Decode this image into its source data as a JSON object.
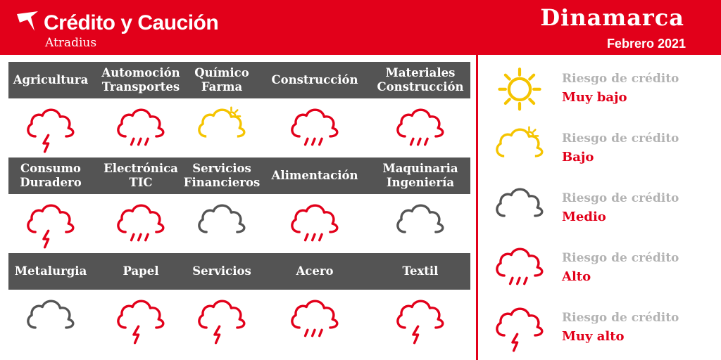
{
  "header": {
    "brand_title": "Crédito y Caución",
    "brand_subtitle": "Atradius",
    "country": "Dinamarca",
    "date": "Febrero 2021"
  },
  "sectors": [
    {
      "lines": [
        "Agricultura"
      ],
      "risk": "muy-alto"
    },
    {
      "lines": [
        "Automoción",
        "Transportes"
      ],
      "risk": "alto"
    },
    {
      "lines": [
        "Químico",
        "Farma"
      ],
      "risk": "bajo"
    },
    {
      "lines": [
        "Construcción"
      ],
      "risk": "alto"
    },
    {
      "lines": [
        "Materiales",
        "Construcción"
      ],
      "risk": "alto"
    },
    {
      "lines": [
        "Consumo",
        "Duradero"
      ],
      "risk": "muy-alto"
    },
    {
      "lines": [
        "Electrónica",
        "TIC"
      ],
      "risk": "alto"
    },
    {
      "lines": [
        "Servicios",
        "Financieros"
      ],
      "risk": "medio"
    },
    {
      "lines": [
        "Alimentación"
      ],
      "risk": "alto"
    },
    {
      "lines": [
        "Maquinaria",
        "Ingeniería"
      ],
      "risk": "medio"
    },
    {
      "lines": [
        "Metalurgia"
      ],
      "risk": "medio"
    },
    {
      "lines": [
        "Papel"
      ],
      "risk": "muy-alto"
    },
    {
      "lines": [
        "Servicios"
      ],
      "risk": "muy-alto"
    },
    {
      "lines": [
        "Acero"
      ],
      "risk": "alto"
    },
    {
      "lines": [
        "Textil"
      ],
      "risk": "muy-alto"
    }
  ],
  "legend": [
    {
      "kicker": "Riesgo de crédito",
      "level": "Muy bajo",
      "risk": "muy-bajo",
      "icon": "sun-icon"
    },
    {
      "kicker": "Riesgo de crédito",
      "level": "Bajo",
      "risk": "bajo",
      "icon": "sun-cloud-icon"
    },
    {
      "kicker": "Riesgo de crédito",
      "level": "Medio",
      "risk": "medio",
      "icon": "cloud-icon"
    },
    {
      "kicker": "Riesgo de crédito",
      "level": "Alto",
      "risk": "alto",
      "icon": "rain-cloud-icon"
    },
    {
      "kicker": "Riesgo de crédito",
      "level": "Muy alto",
      "risk": "muy-alto",
      "icon": "storm-cloud-icon"
    }
  ],
  "colors": {
    "brand_red": "#e2001a",
    "band_gray": "#545454",
    "sun_yellow": "#f5c400",
    "cloud_gray": "#555555",
    "kicker_gray": "#b3b3b3"
  }
}
